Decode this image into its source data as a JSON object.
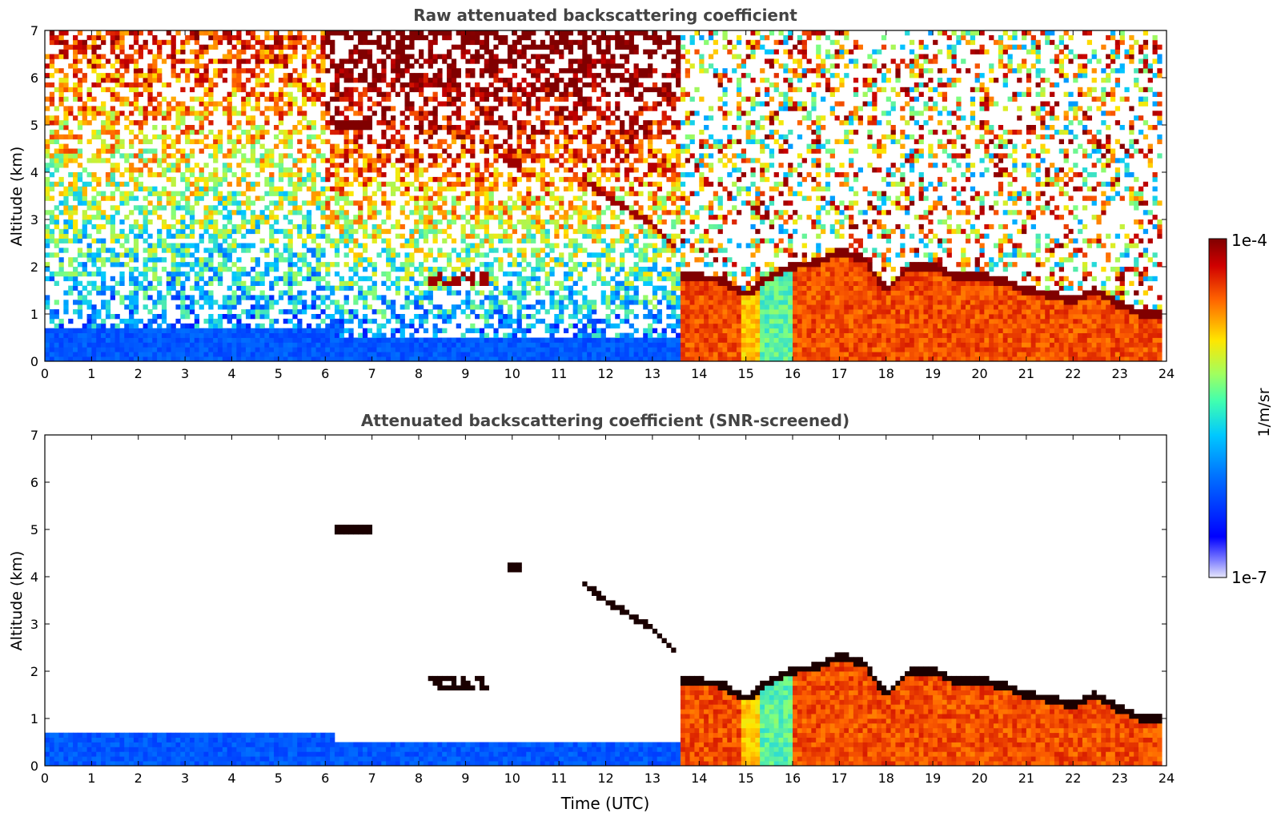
{
  "chart_data": [
    {
      "type": "heatmap",
      "title": "Raw attenuated backscattering coefficient",
      "xlabel": "",
      "ylabel": "Altitude (km)",
      "xlim": [
        0,
        24
      ],
      "ylim": [
        0,
        7
      ],
      "x_ticks": [
        "0",
        "1",
        "2",
        "3",
        "4",
        "5",
        "6",
        "7",
        "8",
        "9",
        "10",
        "11",
        "12",
        "13",
        "14",
        "15",
        "16",
        "17",
        "18",
        "19",
        "20",
        "21",
        "22",
        "23",
        "24"
      ],
      "y_ticks": [
        "0",
        "1",
        "2",
        "3",
        "4",
        "5",
        "6",
        "7"
      ],
      "cloud_base_km": [
        {
          "t": 13.5,
          "z": 1.8
        },
        {
          "t": 14.0,
          "z": 1.8
        },
        {
          "t": 14.5,
          "z": 1.7
        },
        {
          "t": 15.0,
          "z": 1.4
        },
        {
          "t": 15.5,
          "z": 1.8
        },
        {
          "t": 16.0,
          "z": 2.0
        },
        {
          "t": 16.5,
          "z": 2.1
        },
        {
          "t": 17.0,
          "z": 2.3
        },
        {
          "t": 17.5,
          "z": 2.2
        },
        {
          "t": 18.0,
          "z": 1.5
        },
        {
          "t": 18.5,
          "z": 2.0
        },
        {
          "t": 19.0,
          "z": 2.0
        },
        {
          "t": 19.5,
          "z": 1.8
        },
        {
          "t": 20.0,
          "z": 1.8
        },
        {
          "t": 20.5,
          "z": 1.7
        },
        {
          "t": 21.0,
          "z": 1.5
        },
        {
          "t": 21.5,
          "z": 1.4
        },
        {
          "t": 22.0,
          "z": 1.3
        },
        {
          "t": 22.5,
          "z": 1.5
        },
        {
          "t": 23.0,
          "z": 1.2
        },
        {
          "t": 23.5,
          "z": 1.0
        }
      ],
      "boundary_layer_top_km": [
        {
          "t": 0,
          "z": 0.8
        },
        {
          "t": 6,
          "z": 0.75
        },
        {
          "t": 6.2,
          "z": 0.55
        },
        {
          "t": 13.6,
          "z": 0.45
        }
      ],
      "lifting_layer_km": [
        {
          "t": 11.5,
          "z": 3.9
        },
        {
          "t": 12.0,
          "z": 3.5
        },
        {
          "t": 12.5,
          "z": 3.2
        },
        {
          "t": 13.0,
          "z": 2.9
        },
        {
          "t": 13.5,
          "z": 2.4
        }
      ]
    },
    {
      "type": "heatmap",
      "title": "Attenuated backscattering coefficient (SNR-screened)",
      "xlabel": "Time (UTC)",
      "ylabel": "Altitude (km)",
      "xlim": [
        0,
        24
      ],
      "ylim": [
        0,
        7
      ],
      "x_ticks": [
        "0",
        "1",
        "2",
        "3",
        "4",
        "5",
        "6",
        "7",
        "8",
        "9",
        "10",
        "11",
        "12",
        "13",
        "14",
        "15",
        "16",
        "17",
        "18",
        "19",
        "20",
        "21",
        "22",
        "23",
        "24"
      ],
      "y_ticks": [
        "0",
        "1",
        "2",
        "3",
        "4",
        "5",
        "6",
        "7"
      ]
    }
  ],
  "colorbar": {
    "label": "1/m/sr",
    "max_label": "1e-4",
    "min_label": "1e-7",
    "scale": "log",
    "range": [
      1e-07,
      0.0001
    ],
    "colormap": [
      "#e6e6fa",
      "#0000ff",
      "#0072ff",
      "#00c8ff",
      "#7fff7f",
      "#ffe600",
      "#ff6400",
      "#c80000",
      "#800000"
    ]
  }
}
